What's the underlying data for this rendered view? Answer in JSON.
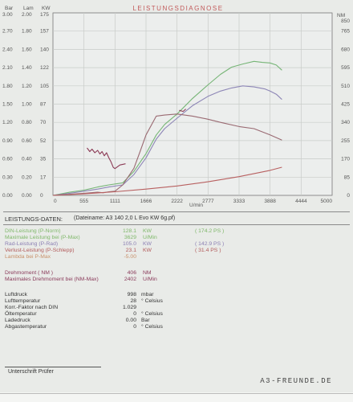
{
  "chart_data": {
    "type": "line",
    "title": "LEISTUNGSDIAGNOSE",
    "xlabel": "U/min",
    "xlim": [
      0,
      5000
    ],
    "x_ticks": [
      "0",
      "555",
      "1111",
      "1666",
      "2222",
      "2777",
      "3333",
      "3888",
      "4444",
      "5000"
    ],
    "left_axes": [
      {
        "label": "Bar",
        "ticks": [
          "3.00",
          "2.70",
          "2.40",
          "2.10",
          "1.80",
          "1.50",
          "1.20",
          "0.90",
          "0.60",
          "0.30",
          "0.00"
        ]
      },
      {
        "label": "Lam",
        "ticks": [
          "2.00",
          "1.80",
          "1.60",
          "1.40",
          "1.20",
          "1.00",
          "0.80",
          "0.60",
          "0.40",
          "0.20",
          "0.00"
        ]
      },
      {
        "label": "KW",
        "ticks": [
          "175",
          "157",
          "140",
          "122",
          "105",
          "87",
          "70",
          "52",
          "35",
          "17",
          "0"
        ]
      }
    ],
    "right_axis": {
      "label": "NM",
      "ticks": [
        "850",
        "765",
        "680",
        "595",
        "510",
        "425",
        "340",
        "255",
        "170",
        "85",
        "0"
      ]
    },
    "grid": true,
    "series": [
      {
        "color": "#76b576",
        "axis": "KW",
        "x": [
          0,
          300,
          555,
          800,
          1000,
          1250,
          1450,
          1666,
          1850,
          2000,
          2222,
          2500,
          2777,
          3000,
          3200,
          3400,
          3600,
          3750,
          3888,
          4000,
          4100
        ],
        "y": [
          0,
          3,
          5,
          8,
          10,
          12,
          23,
          40,
          58,
          68,
          78,
          93,
          106,
          116,
          123,
          126,
          128.5,
          127.5,
          127,
          125,
          120
        ]
      },
      {
        "color": "#8d86b6",
        "axis": "KW",
        "x": [
          0,
          300,
          555,
          800,
          1000,
          1250,
          1450,
          1666,
          1850,
          2000,
          2222,
          2500,
          2777,
          3000,
          3200,
          3400,
          3600,
          3800,
          3888,
          4000,
          4100
        ],
        "y": [
          0,
          2,
          4,
          6,
          8,
          10,
          20,
          36,
          54,
          64,
          74,
          86,
          95,
          100,
          103,
          105,
          104,
          102,
          100,
          97,
          92
        ]
      },
      {
        "color": "#9a6a72",
        "axis": "KW",
        "x": [
          0,
          300,
          555,
          800,
          900,
          1000,
          1111,
          1250,
          1450,
          1560,
          1666,
          1850,
          2000,
          2222,
          2500,
          2777,
          3000,
          3333,
          3600,
          3888,
          4100
        ],
        "y": [
          0,
          1,
          2,
          3,
          2.5,
          3.5,
          4,
          10,
          26,
          42,
          58,
          76,
          77,
          78,
          76,
          73,
          70,
          66,
          64,
          58,
          53
        ]
      },
      {
        "color": "#b86060",
        "axis": "KW",
        "x": [
          0,
          555,
          1111,
          1666,
          2222,
          2777,
          3333,
          3888,
          4100
        ],
        "y": [
          0,
          1.5,
          3.5,
          6,
          9,
          13,
          18,
          24,
          27
        ]
      },
      {
        "color": "#8b3a55",
        "axis": "Bar",
        "x": [
          610,
          660,
          700,
          750,
          800,
          840,
          880,
          920,
          960,
          1000,
          1040,
          1080,
          1111,
          1200,
          1300
        ],
        "y": [
          0.78,
          0.72,
          0.76,
          0.7,
          0.74,
          0.68,
          0.72,
          0.65,
          0.7,
          0.62,
          0.55,
          0.46,
          0.44,
          0.5,
          0.52
        ]
      },
      {
        "color": "#8b3a55",
        "axis": "Bar",
        "x": [
          2260,
          2330,
          2380
        ],
        "y": [
          1.4,
          1.38,
          1.42
        ]
      }
    ]
  },
  "brand": "A3-FREUNDE.DE",
  "panel": {
    "section_title": "LEISTUNGS-DATEN:",
    "file_label": "(Dateiname: A3 140 2,0 L Evo KW 6g.pf)",
    "rows": [
      {
        "label": "DIN-Leistung (P-Norm)",
        "value": "128.1",
        "unit": "KW",
        "ps": "( 174.2 PS )",
        "color": "#7fb86a"
      },
      {
        "label": "Maximale Leistung bei (P-Max)",
        "value": "3629",
        "unit": "U/Min",
        "ps": "",
        "color": "#7fb86a"
      },
      {
        "label": "Rad-Leistung (P-Rad)",
        "value": "105.0",
        "unit": "KW",
        "ps": "( 142.9 PS )",
        "color": "#8c80b4"
      },
      {
        "label": "Verlust-Leistung (P-Schlepp)",
        "value": "23.1",
        "unit": "KW",
        "ps": "( 31.4 PS )",
        "color": "#b25a5a"
      },
      {
        "label": "Lambda bei P-Max",
        "value": "-5.00",
        "unit": "",
        "ps": "",
        "color": "#c8906a"
      }
    ],
    "torque_rows": [
      {
        "label": "Drehmoment ( NM )",
        "value": "406",
        "unit": "NM",
        "color": "#8a3a5a"
      },
      {
        "label": "Maximales Drehmoment bei (NM-Max)",
        "value": "2402",
        "unit": "U/Min",
        "color": "#8a3a5a"
      }
    ],
    "env_rows": [
      {
        "label": "Luftdruck",
        "value": "998",
        "unit": "mbar"
      },
      {
        "label": "Lufttemperatur",
        "value": "28",
        "unit": "° Celsius"
      },
      {
        "label": "Korr.-Faktor nach DIN",
        "value": "1.029",
        "unit": ""
      },
      {
        "label": "Öltemperatur",
        "value": "0",
        "unit": "° Celsius"
      },
      {
        "label": "Ladedruck",
        "value": "0.00",
        "unit": "Bar"
      },
      {
        "label": "Abgastemperatur",
        "value": "0",
        "unit": "° Celsius"
      }
    ],
    "signature_label": "Unterschrift Prüfer"
  }
}
